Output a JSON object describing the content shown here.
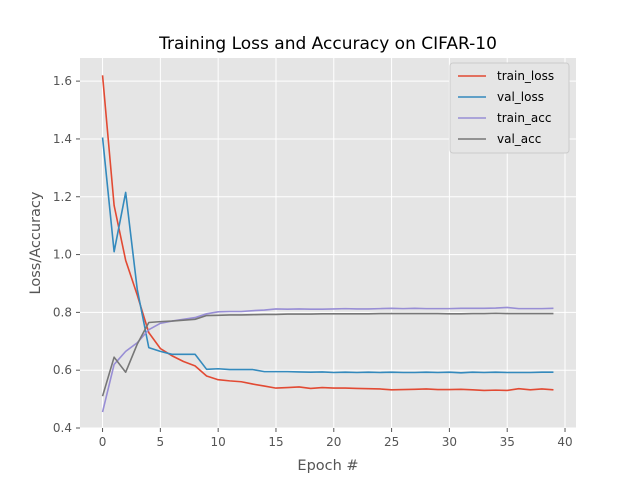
{
  "chart_data": {
    "type": "line",
    "title": "Training Loss and Accuracy on CIFAR-10",
    "xlabel": "Epoch #",
    "ylabel": "Loss/Accuracy",
    "xlim": [
      -1.95,
      40.95
    ],
    "ylim": [
      0.4,
      1.68
    ],
    "xticks": [
      0,
      5,
      10,
      15,
      20,
      25,
      30,
      35,
      40
    ],
    "yticks": [
      0.4,
      0.6,
      0.8,
      1.0,
      1.2,
      1.4,
      1.6
    ],
    "grid": true,
    "legend_position": "top-right",
    "x": [
      0,
      1,
      2,
      3,
      4,
      5,
      6,
      7,
      8,
      9,
      10,
      11,
      12,
      13,
      14,
      15,
      16,
      17,
      18,
      19,
      20,
      21,
      22,
      23,
      24,
      25,
      26,
      27,
      28,
      29,
      30,
      31,
      32,
      33,
      34,
      35,
      36,
      37,
      38,
      39
    ],
    "series": [
      {
        "name": "train_loss",
        "color": "#E24A33",
        "values": [
          1.62,
          1.17,
          0.98,
          0.86,
          0.73,
          0.675,
          0.65,
          0.63,
          0.615,
          0.58,
          0.567,
          0.563,
          0.56,
          0.552,
          0.545,
          0.538,
          0.54,
          0.542,
          0.537,
          0.54,
          0.538,
          0.538,
          0.537,
          0.536,
          0.535,
          0.532,
          0.533,
          0.534,
          0.535,
          0.533,
          0.533,
          0.534,
          0.532,
          0.53,
          0.531,
          0.53,
          0.536,
          0.532,
          0.535,
          0.532
        ]
      },
      {
        "name": "val_loss",
        "color": "#348ABD",
        "values": [
          1.405,
          1.01,
          1.215,
          0.88,
          0.678,
          0.665,
          0.655,
          0.655,
          0.655,
          0.603,
          0.605,
          0.602,
          0.602,
          0.602,
          0.595,
          0.595,
          0.595,
          0.594,
          0.593,
          0.594,
          0.592,
          0.593,
          0.592,
          0.593,
          0.592,
          0.593,
          0.592,
          0.592,
          0.593,
          0.592,
          0.593,
          0.591,
          0.593,
          0.592,
          0.593,
          0.592,
          0.592,
          0.592,
          0.593,
          0.593
        ]
      },
      {
        "name": "train_acc",
        "color": "#988ED5",
        "values": [
          0.455,
          0.62,
          0.665,
          0.695,
          0.74,
          0.762,
          0.77,
          0.776,
          0.782,
          0.795,
          0.802,
          0.803,
          0.803,
          0.806,
          0.808,
          0.812,
          0.811,
          0.812,
          0.811,
          0.811,
          0.812,
          0.813,
          0.812,
          0.812,
          0.813,
          0.814,
          0.813,
          0.814,
          0.813,
          0.813,
          0.813,
          0.814,
          0.814,
          0.814,
          0.815,
          0.817,
          0.813,
          0.813,
          0.813,
          0.814
        ]
      },
      {
        "name": "val_acc",
        "color": "#777777",
        "values": [
          0.51,
          0.645,
          0.593,
          0.69,
          0.765,
          0.768,
          0.77,
          0.773,
          0.776,
          0.789,
          0.79,
          0.791,
          0.791,
          0.792,
          0.793,
          0.793,
          0.794,
          0.794,
          0.794,
          0.795,
          0.795,
          0.795,
          0.795,
          0.795,
          0.796,
          0.796,
          0.796,
          0.796,
          0.796,
          0.796,
          0.795,
          0.795,
          0.796,
          0.796,
          0.797,
          0.796,
          0.796,
          0.796,
          0.796,
          0.796
        ]
      }
    ]
  }
}
